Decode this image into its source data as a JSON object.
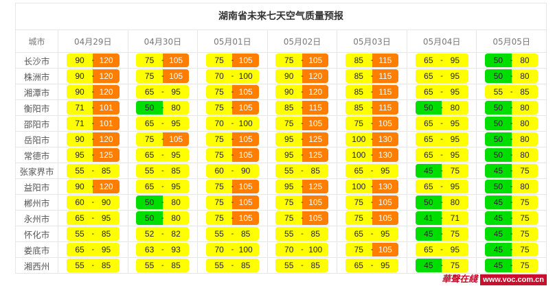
{
  "title": "湖南省未来七天空气质量预报",
  "columns": [
    "城市",
    "04月29日",
    "04月30日",
    "05月01日",
    "05月02日",
    "05月03日",
    "05月04日",
    "05月05日"
  ],
  "colors": {
    "good": "#00dd00",
    "moderate": "#ffff00",
    "unhealthy_sensitive": "#ff7e00"
  },
  "rows": [
    {
      "city": "长沙市",
      "values": [
        [
          90,
          120
        ],
        [
          75,
          105
        ],
        [
          75,
          105
        ],
        [
          75,
          105
        ],
        [
          85,
          115
        ],
        [
          65,
          95
        ],
        [
          50,
          80
        ]
      ]
    },
    {
      "city": "株洲市",
      "values": [
        [
          90,
          120
        ],
        [
          75,
          105
        ],
        [
          70,
          100
        ],
        [
          90,
          120
        ],
        [
          85,
          115
        ],
        [
          65,
          95
        ],
        [
          50,
          80
        ]
      ]
    },
    {
      "city": "湘潭市",
      "values": [
        [
          90,
          120
        ],
        [
          65,
          95
        ],
        [
          75,
          105
        ],
        [
          90,
          120
        ],
        [
          85,
          115
        ],
        [
          65,
          95
        ],
        [
          55,
          85
        ]
      ]
    },
    {
      "city": "衡阳市",
      "values": [
        [
          71,
          101
        ],
        [
          50,
          80
        ],
        [
          75,
          105
        ],
        [
          85,
          115
        ],
        [
          85,
          115
        ],
        [
          50,
          80
        ],
        [
          50,
          80
        ]
      ]
    },
    {
      "city": "邵阳市",
      "values": [
        [
          71,
          101
        ],
        [
          65,
          95
        ],
        [
          70,
          100
        ],
        [
          75,
          105
        ],
        [
          75,
          105
        ],
        [
          65,
          95
        ],
        [
          50,
          80
        ]
      ]
    },
    {
      "city": "岳阳市",
      "values": [
        [
          90,
          120
        ],
        [
          75,
          105
        ],
        [
          75,
          105
        ],
        [
          95,
          125
        ],
        [
          100,
          130
        ],
        [
          65,
          95
        ],
        [
          50,
          80
        ]
      ]
    },
    {
      "city": "常德市",
      "values": [
        [
          95,
          125
        ],
        [
          65,
          95
        ],
        [
          75,
          105
        ],
        [
          95,
          125
        ],
        [
          100,
          130
        ],
        [
          65,
          95
        ],
        [
          50,
          80
        ]
      ]
    },
    {
      "city": "张家界市",
      "values": [
        [
          55,
          85
        ],
        [
          55,
          85
        ],
        [
          60,
          90
        ],
        [
          55,
          85
        ],
        [
          65,
          95
        ],
        [
          45,
          75
        ],
        [
          45,
          75
        ]
      ]
    },
    {
      "city": "益阳市",
      "values": [
        [
          90,
          120
        ],
        [
          65,
          95
        ],
        [
          75,
          105
        ],
        [
          95,
          125
        ],
        [
          100,
          130
        ],
        [
          65,
          95
        ],
        [
          50,
          80
        ]
      ]
    },
    {
      "city": "郴州市",
      "values": [
        [
          60,
          90
        ],
        [
          50,
          80
        ],
        [
          75,
          105
        ],
        [
          75,
          105
        ],
        [
          75,
          105
        ],
        [
          50,
          80
        ],
        [
          45,
          75
        ]
      ]
    },
    {
      "city": "永州市",
      "values": [
        [
          65,
          95
        ],
        [
          50,
          80
        ],
        [
          75,
          105
        ],
        [
          75,
          105
        ],
        [
          75,
          105
        ],
        [
          41,
          71
        ],
        [
          45,
          75
        ]
      ]
    },
    {
      "city": "怀化市",
      "values": [
        [
          55,
          85
        ],
        [
          52,
          82
        ],
        [
          55,
          85
        ],
        [
          55,
          85
        ],
        [
          65,
          95
        ],
        [
          45,
          75
        ],
        [
          45,
          75
        ]
      ]
    },
    {
      "city": "娄底市",
      "values": [
        [
          65,
          95
        ],
        [
          63,
          93
        ],
        [
          70,
          100
        ],
        [
          70,
          100
        ],
        [
          75,
          105
        ],
        [
          65,
          95
        ],
        [
          45,
          75
        ]
      ]
    },
    {
      "city": "湘西州",
      "values": [
        [
          55,
          85
        ],
        [
          55,
          85
        ],
        [
          55,
          85
        ],
        [
          55,
          85
        ],
        [
          65,
          95
        ],
        [
          45,
          75
        ],
        [
          45,
          75
        ]
      ]
    }
  ],
  "separator": "-",
  "watermark": {
    "brand": "华声在线",
    "url": "www.voc.com.cn"
  }
}
